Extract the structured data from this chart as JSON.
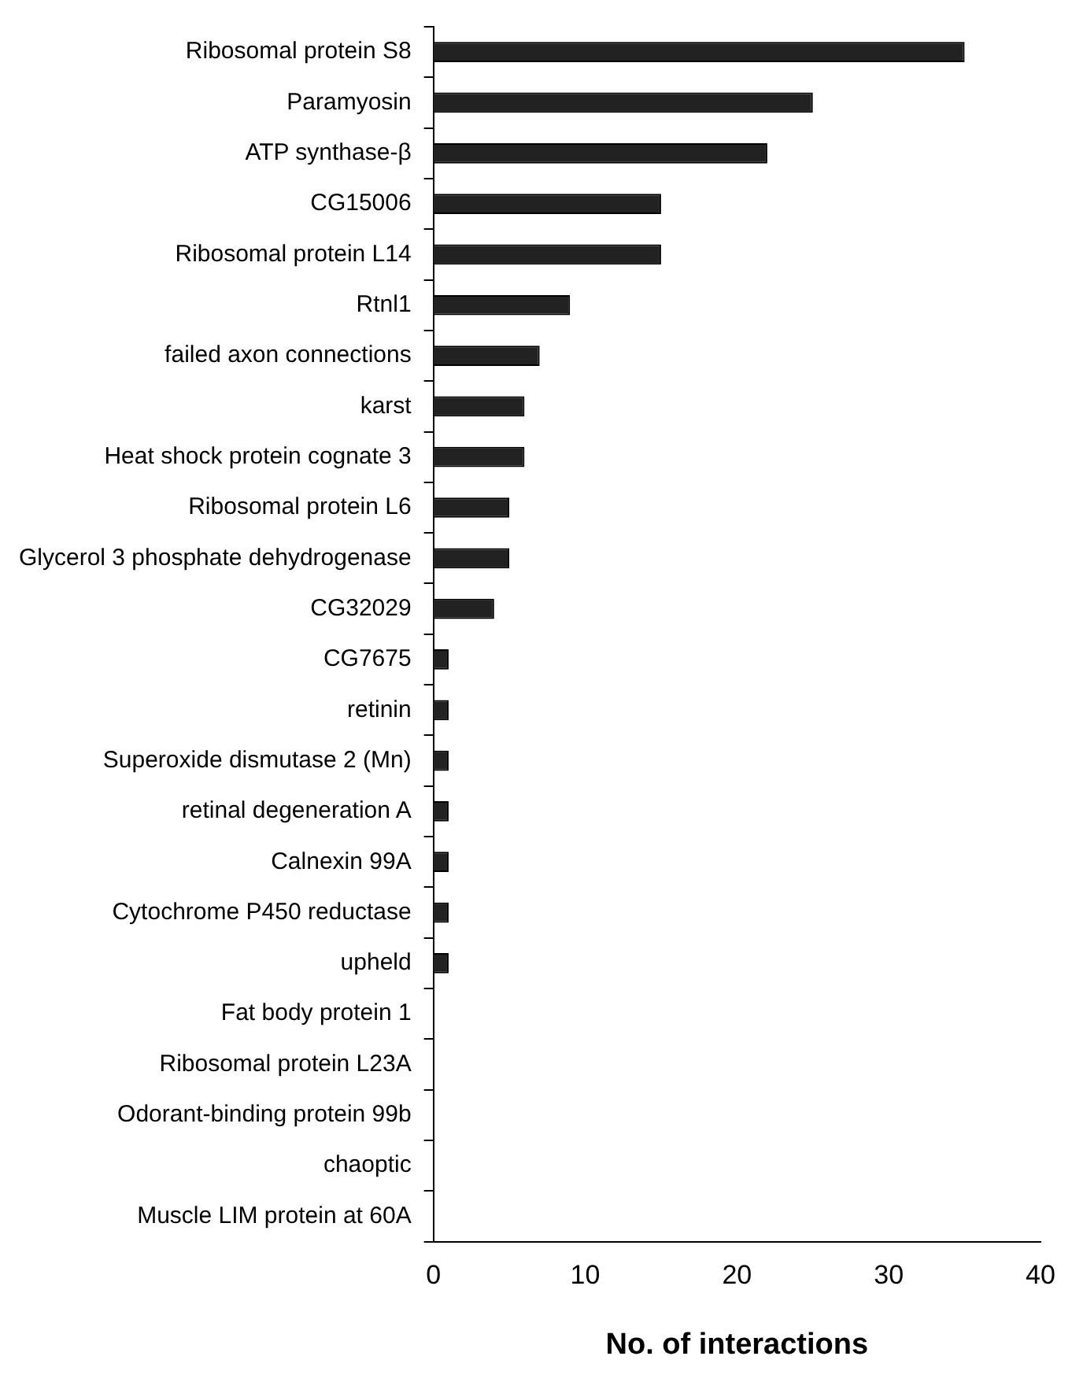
{
  "chart_data": {
    "type": "bar",
    "orientation": "horizontal",
    "xlabel": "No. of interactions",
    "categories": [
      "Ribosomal protein S8",
      "Paramyosin",
      "ATP synthase-β",
      "CG15006",
      "Ribosomal protein L14",
      "Rtnl1",
      "failed axon connections",
      "karst",
      "Heat shock protein cognate 3",
      "Ribosomal protein L6",
      "Glycerol 3 phosphate dehydrogenase",
      "CG32029",
      "CG7675",
      "retinin",
      "Superoxide dismutase 2 (Mn)",
      "retinal degeneration A",
      "Calnexin 99A",
      "Cytochrome P450 reductase",
      "upheld",
      "Fat body protein 1",
      "Ribosomal protein L23A",
      "Odorant-binding protein 99b",
      "chaoptic",
      "Muscle LIM protein at 60A"
    ],
    "values": [
      35,
      25,
      22,
      15,
      15,
      9,
      7,
      6,
      6,
      5,
      5,
      4,
      1,
      1,
      1,
      1,
      1,
      1,
      1,
      0,
      0,
      0,
      0,
      0
    ],
    "color": "#222222",
    "xlim": [
      0,
      40
    ],
    "xticks": [
      0,
      10,
      20,
      30,
      40
    ],
    "grid": false,
    "legend": false
  }
}
